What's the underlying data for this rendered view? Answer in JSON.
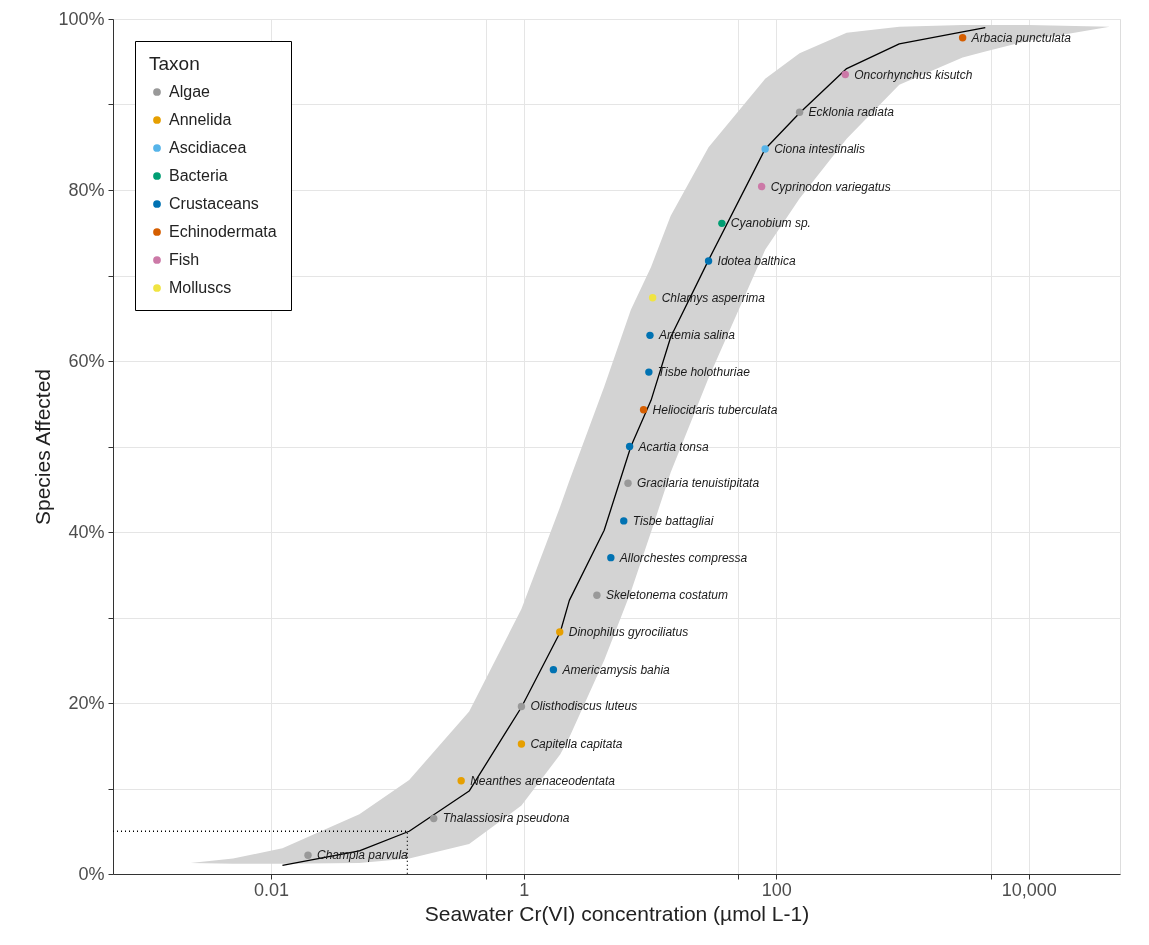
{
  "chart_data": {
    "type": "scatter",
    "xlabel": "Seawater Cr(VI) concentration (µmol L-1)",
    "ylabel": "Species Affected",
    "legend_title": "Taxon",
    "legend": "top left",
    "grid": true,
    "log": "x",
    "marker": "circle",
    "xlim": [
      0.00056,
      52700
    ],
    "xticks": [
      0.01,
      {
        "value": 0.5,
        "label": null
      },
      1,
      {
        "value": 50,
        "label": null
      },
      100,
      {
        "value": 5000,
        "label": null
      },
      {
        "value": 10000,
        "label": "10,000"
      }
    ],
    "ylim": [
      0,
      100
    ],
    "yticks": [
      {
        "value": 0,
        "label": "0%"
      },
      {
        "value": 10,
        "label": null
      },
      {
        "value": 20,
        "label": "20%"
      },
      {
        "value": 30,
        "label": null
      },
      {
        "value": 40,
        "label": "40%"
      },
      {
        "value": 50,
        "label": null
      },
      {
        "value": 60,
        "label": "60%"
      },
      {
        "value": 70,
        "label": null
      },
      {
        "value": 80,
        "label": "80%"
      },
      {
        "value": 90,
        "label": null
      },
      {
        "value": 100,
        "label": "100%"
      }
    ],
    "series": [
      {
        "type": "line",
        "color": "#000000",
        "marker": "none",
        "line_style": "solid",
        "x": [
          0.0023,
          0.005,
          0.0123,
          0.05,
          0.124,
          0.37,
          0.96,
          1.95,
          2.3,
          4.34,
          7.06,
          10.2,
          14.6,
          29.1,
          81.7,
          153,
          361,
          942,
          2990,
          4520,
          10000,
          43600
        ],
        "values": [
          null,
          null,
          1.0,
          2.7,
          5.0,
          9.7,
          19.5,
          28.3,
          32,
          40.2,
          50,
          55.4,
          62.8,
          71.8,
          84.8,
          89,
          94.2,
          97.1,
          98.5,
          99.0,
          null,
          null
        ],
        "upper": [
          1.3,
          1.8,
          3,
          7,
          11,
          19,
          31,
          43,
          46,
          57,
          66,
          71,
          77,
          85,
          93,
          96,
          98.4,
          99.1,
          99.3,
          99.3,
          99.3,
          99.1
        ],
        "lower": [
          1.3,
          1.2,
          1.2,
          1.3,
          1.8,
          3.5,
          8,
          14,
          16,
          25,
          33,
          40,
          47,
          58,
          73,
          79,
          86,
          92.3,
          95.5,
          96.2,
          97.5,
          99.1
        ]
      },
      {
        "name": "Algae",
        "color": "#999999",
        "x": [
          0.0196,
          0.194,
          0.96,
          3.8,
          6.7,
          153
        ],
        "values": [
          2.2,
          6.5,
          19.6,
          32.6,
          45.7,
          89.1
        ],
        "value_labels": [
          "Champia parvula",
          "Thalassiosira pseudona",
          "Olisthodiscus luteus",
          "Skeletonema costatum",
          "Gracilaria tenuistipitata",
          "Ecklonia radiata"
        ]
      },
      {
        "name": "Annelida",
        "color": "#E69F00",
        "x": [
          0.32,
          0.96,
          1.93
        ],
        "values": [
          10.9,
          15.2,
          28.3
        ],
        "value_labels": [
          "Neanthes arenaceodentata",
          "Capitella capitata",
          "Dinophilus gyrociliatus"
        ]
      },
      {
        "name": "Ascidiacea",
        "color": "#56B4E9",
        "x": [
          81.7
        ],
        "values": [
          84.8
        ],
        "value_labels": [
          "Ciona intestinalis"
        ]
      },
      {
        "name": "Bacteria",
        "color": "#009E73",
        "x": [
          37.1
        ],
        "values": [
          76.1
        ],
        "value_labels": [
          "Cyanobium sp."
        ]
      },
      {
        "name": "Crustaceans",
        "color": "#0072B2",
        "x": [
          1.72,
          4.9,
          6.2,
          6.9,
          9.8,
          10.0,
          29.1
        ],
        "values": [
          23.9,
          37.0,
          41.3,
          50.0,
          58.7,
          63.0,
          71.7
        ],
        "value_labels": [
          "Americamysis bahia",
          "Allorchestes compressa",
          "Tisbe battagliai",
          "Acartia tonsa",
          "Tisbe holothuriae",
          "Artemia salina",
          "Idotea balthica"
        ]
      },
      {
        "name": "Echinodermata",
        "color": "#D55E00",
        "x": [
          8.9,
          2990
        ],
        "values": [
          54.3,
          97.8
        ],
        "value_labels": [
          "Heliocidaris tuberculata",
          "Arbacia punctulata"
        ]
      },
      {
        "name": "Fish",
        "color": "#CC79A7",
        "x": [
          76.6,
          352
        ],
        "values": [
          80.4,
          93.5
        ],
        "value_labels": [
          "Cyprinodon variegatus",
          "Oncorhynchus kisutch"
        ]
      },
      {
        "name": "Molluscs",
        "color": "#F0E442",
        "x": [
          10.5
        ],
        "values": [
          67.4
        ],
        "value_labels": [
          "Chlamys asperrima"
        ]
      },
      {
        "type": "line",
        "color": "#000000",
        "marker": "none",
        "line_style": "dotted",
        "x": [
          0.00056,
          0.12,
          0.12
        ],
        "values": [
          5,
          5,
          0
        ]
      }
    ]
  }
}
